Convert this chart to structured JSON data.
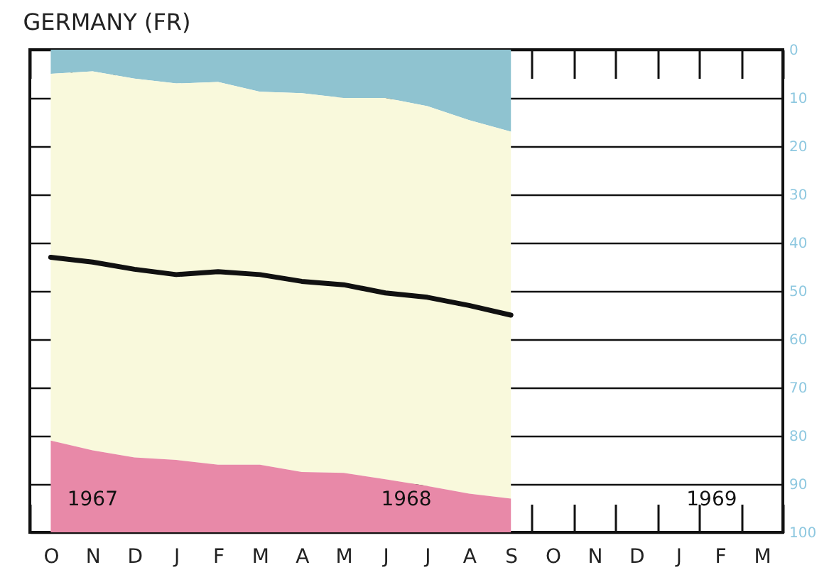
{
  "chart_data": {
    "type": "area",
    "title": "GERMANY (FR)",
    "categories": [
      "O",
      "N",
      "D",
      "J",
      "F",
      "M",
      "A",
      "M",
      "J",
      "J",
      "A",
      "S",
      "O",
      "N",
      "D",
      "J",
      "F",
      "M"
    ],
    "stacked": true,
    "series": [
      {
        "type": "area",
        "color": "#8fc3d0",
        "values": [
          5,
          4.5,
          6,
          7,
          6.7,
          8.7,
          9,
          10,
          10,
          11.7,
          14.6,
          17,
          null,
          null,
          null,
          null,
          null,
          null
        ]
      },
      {
        "type": "area",
        "color": "#f9f9dc",
        "values": [
          76,
          78.5,
          78.5,
          78,
          79.3,
          77.3,
          78.5,
          77.7,
          79,
          78.7,
          77.4,
          76,
          null,
          null,
          null,
          null,
          null,
          null
        ]
      },
      {
        "type": "area",
        "color": "#e889a8",
        "values": [
          19,
          17,
          15.5,
          15,
          14,
          14,
          12.5,
          12.3,
          11,
          9.6,
          8,
          7,
          null,
          null,
          null,
          null,
          null,
          null
        ]
      },
      {
        "type": "line",
        "color": "#111111",
        "values": [
          43,
          44,
          45.5,
          46.6,
          46,
          46.6,
          48,
          48.7,
          50.4,
          51.3,
          53,
          55,
          null,
          null,
          null,
          null,
          null,
          null
        ]
      }
    ],
    "ylim": [
      100,
      0
    ],
    "yticks": [
      0,
      10,
      20,
      30,
      40,
      50,
      60,
      70,
      80,
      90,
      100
    ],
    "grid": "y",
    "annotations": [
      "1967",
      "1968",
      "1969"
    ]
  }
}
